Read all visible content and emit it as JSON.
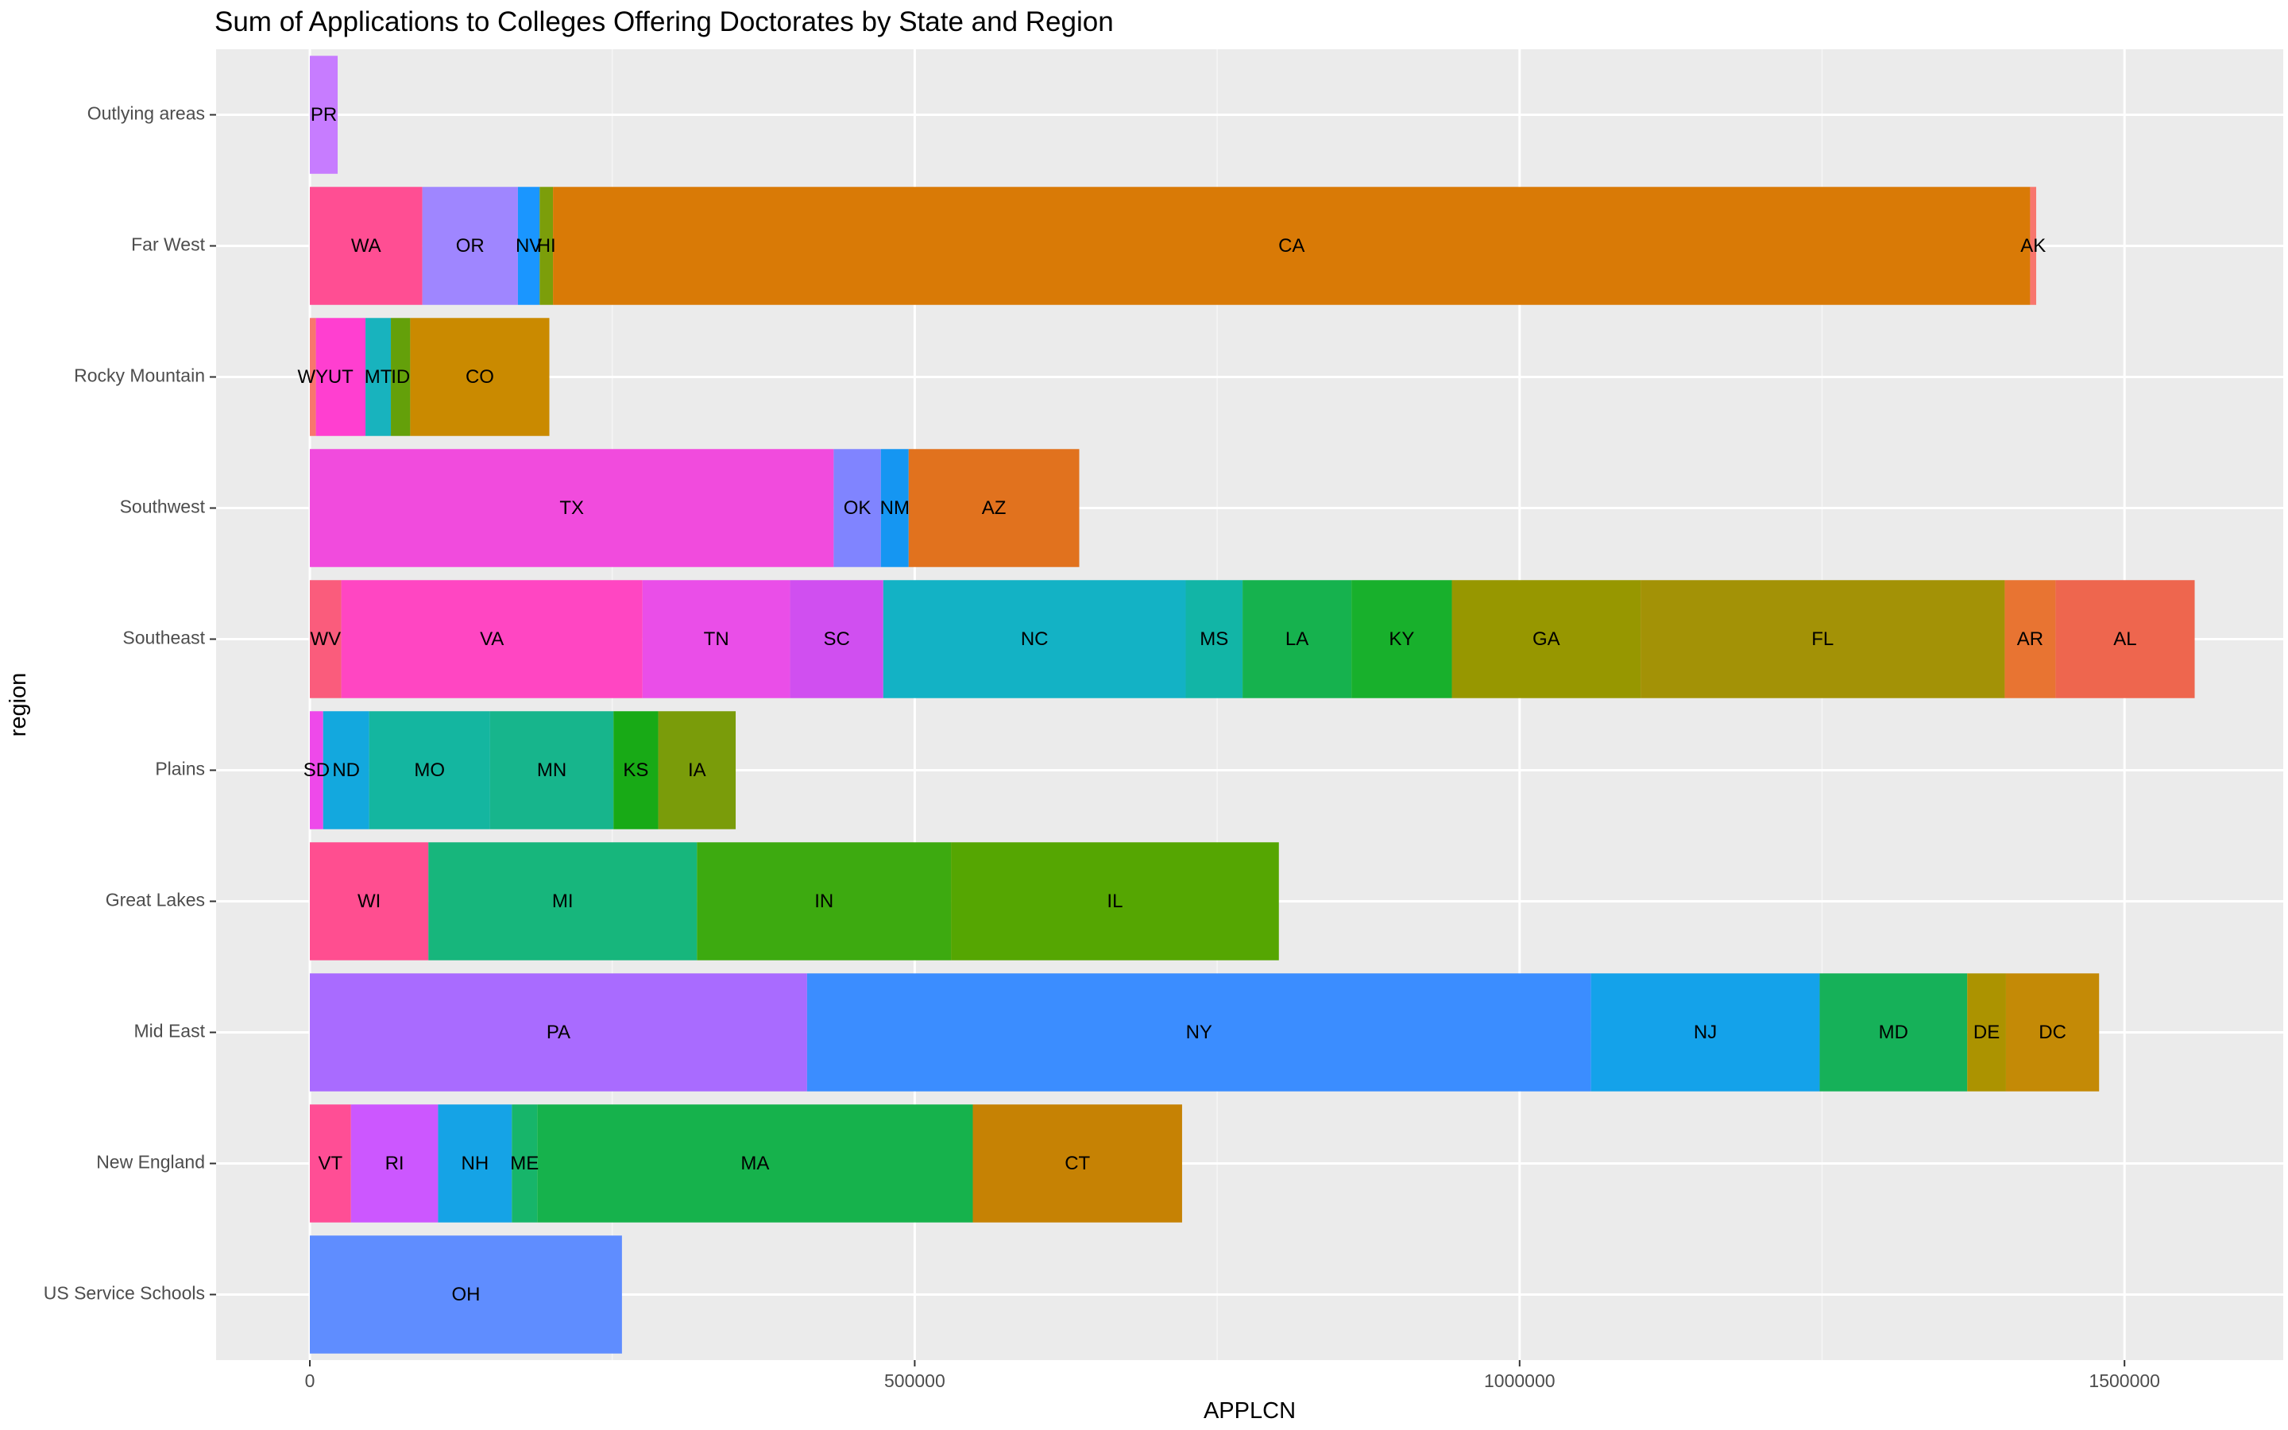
{
  "chart_data": {
    "type": "bar",
    "orientation": "horizontal",
    "stacked": true,
    "title": "Sum of Applications to Colleges Offering Doctorates by State and Region",
    "xlabel": "APPLCN",
    "ylabel": "region",
    "xlim": [
      -78000,
      1640000
    ],
    "x_ticks": [
      0,
      500000,
      1000000,
      1500000
    ],
    "x_tick_labels": [
      "0",
      "500000",
      "1000000",
      "1500000"
    ],
    "grid": true,
    "legend": "none",
    "categories": [
      "Outlying areas",
      "Far West",
      "Rocky Mountain",
      "Southwest",
      "Southeast",
      "Plains",
      "Great Lakes",
      "Mid East",
      "New England",
      "US Service Schools"
    ],
    "rows": [
      {
        "region": "Outlying areas",
        "segments": [
          {
            "state": "PR",
            "value": 23000,
            "color": "#C77CFF"
          }
        ]
      },
      {
        "region": "Far West",
        "segments": [
          {
            "state": "WA",
            "value": 93000,
            "color": "#FF4E93"
          },
          {
            "state": "OR",
            "value": 79000,
            "color": "#9F86FF"
          },
          {
            "state": "NV",
            "value": 18000,
            "color": "#1A96FF"
          },
          {
            "state": "HI",
            "value": 11000,
            "color": "#7C9E0A"
          },
          {
            "state": "CA",
            "value": 1221000,
            "color": "#D97A06"
          },
          {
            "state": "AK",
            "value": 5000,
            "color": "#F8766D"
          }
        ]
      },
      {
        "region": "Rocky Mountain",
        "segments": [
          {
            "state": "WY",
            "value": 5000,
            "color": "#F8766D"
          },
          {
            "state": "UT",
            "value": 41000,
            "color": "#FF3FD0"
          },
          {
            "state": "MT",
            "value": 21000,
            "color": "#18B3BE"
          },
          {
            "state": "ID",
            "value": 16000,
            "color": "#64A00A"
          },
          {
            "state": "CO",
            "value": 115000,
            "color": "#CA8A00"
          }
        ]
      },
      {
        "region": "Southwest",
        "segments": [
          {
            "state": "TX",
            "value": 433000,
            "color": "#F14BDD"
          },
          {
            "state": "OK",
            "value": 39000,
            "color": "#8084FF"
          },
          {
            "state": "NM",
            "value": 23000,
            "color": "#1596F2"
          },
          {
            "state": "AZ",
            "value": 141000,
            "color": "#E1721E"
          }
        ]
      },
      {
        "region": "Southeast",
        "segments": [
          {
            "state": "WV",
            "value": 26000,
            "color": "#FA5C7C"
          },
          {
            "state": "VA",
            "value": 249000,
            "color": "#FF46C2"
          },
          {
            "state": "TN",
            "value": 122000,
            "color": "#EA4EE8"
          },
          {
            "state": "SC",
            "value": 77000,
            "color": "#D04FF0"
          },
          {
            "state": "NC",
            "value": 250000,
            "color": "#13B2C5"
          },
          {
            "state": "MS",
            "value": 47000,
            "color": "#12B5A6"
          },
          {
            "state": "LA",
            "value": 90000,
            "color": "#16B24E"
          },
          {
            "state": "KY",
            "value": 83000,
            "color": "#18B02C"
          },
          {
            "state": "GA",
            "value": 156000,
            "color": "#979700"
          },
          {
            "state": "FL",
            "value": 301000,
            "color": "#A39206"
          },
          {
            "state": "AR",
            "value": 42000,
            "color": "#E87432"
          },
          {
            "state": "AL",
            "value": 115000,
            "color": "#EE664E"
          }
        ]
      },
      {
        "region": "Plains",
        "segments": [
          {
            "state": "SD",
            "value": 11000,
            "color": "#EE49EA"
          },
          {
            "state": "ND",
            "value": 38000,
            "color": "#13A8DE"
          },
          {
            "state": "MO",
            "value": 100000,
            "color": "#14B6A0"
          },
          {
            "state": "MN",
            "value": 102000,
            "color": "#17B58C"
          },
          {
            "state": "KS",
            "value": 37000,
            "color": "#18AA16"
          },
          {
            "state": "IA",
            "value": 64000,
            "color": "#7A9C0A"
          }
        ]
      },
      {
        "region": "Great Lakes",
        "segments": [
          {
            "state": "WI",
            "value": 98000,
            "color": "#FF4E90"
          },
          {
            "state": "MI",
            "value": 222000,
            "color": "#17B67C"
          },
          {
            "state": "IN",
            "value": 210000,
            "color": "#3DAA10"
          },
          {
            "state": "IL",
            "value": 271000,
            "color": "#55A602"
          }
        ]
      },
      {
        "region": "Mid East",
        "segments": [
          {
            "state": "PA",
            "value": 411000,
            "color": "#A96BFF"
          },
          {
            "state": "NY",
            "value": 648000,
            "color": "#3B8DFF"
          },
          {
            "state": "NJ",
            "value": 189000,
            "color": "#14A2EA"
          },
          {
            "state": "MD",
            "value": 122000,
            "color": "#16B159"
          },
          {
            "state": "DE",
            "value": 32000,
            "color": "#AC9300"
          },
          {
            "state": "DC",
            "value": 77000,
            "color": "#C48A06"
          }
        ]
      },
      {
        "region": "New England",
        "segments": [
          {
            "state": "VT",
            "value": 34000,
            "color": "#FF4E95"
          },
          {
            "state": "RI",
            "value": 72000,
            "color": "#CC57FF"
          },
          {
            "state": "NH",
            "value": 61000,
            "color": "#15A3E6"
          },
          {
            "state": "ME",
            "value": 21000,
            "color": "#17B56A"
          },
          {
            "state": "MA",
            "value": 360000,
            "color": "#16B24C"
          },
          {
            "state": "CT",
            "value": 173000,
            "color": "#C68204"
          }
        ]
      },
      {
        "region": "US Service Schools",
        "segments": [
          {
            "state": "OH",
            "value": 258000,
            "color": "#5F8DFF"
          }
        ]
      }
    ]
  }
}
